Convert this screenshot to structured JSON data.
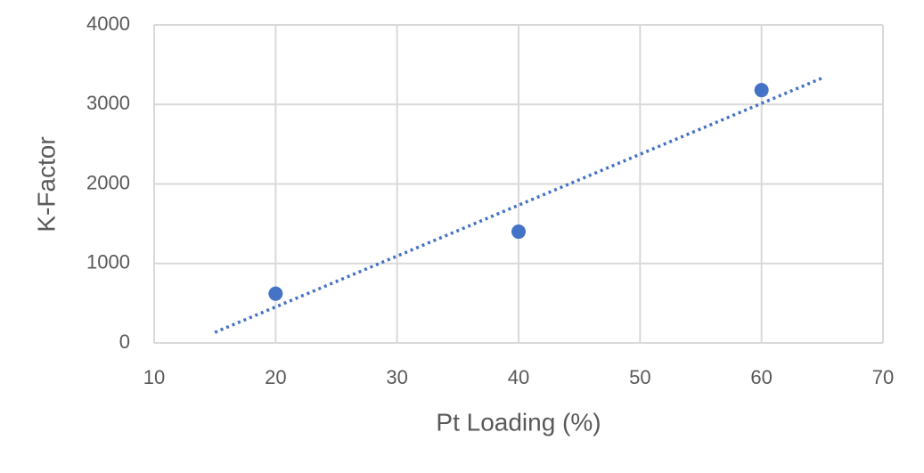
{
  "chart_data": {
    "type": "scatter",
    "x_label": "Pt Loading (%)",
    "y_label": "K-Factor",
    "x": [
      20,
      40,
      60
    ],
    "values": [
      620,
      1400,
      3180
    ],
    "color": "#4472c4",
    "trendline": {
      "x": [
        15,
        65
      ],
      "values": [
        133,
        3333
      ],
      "color": "#4472c4",
      "style": "dotted"
    },
    "xlim": [
      10,
      70
    ],
    "xticks": [
      10,
      20,
      30,
      40,
      50,
      60,
      70
    ],
    "ylim": [
      0,
      4000
    ],
    "yticks": [
      0,
      1000,
      2000,
      3000,
      4000
    ],
    "grid": true
  }
}
